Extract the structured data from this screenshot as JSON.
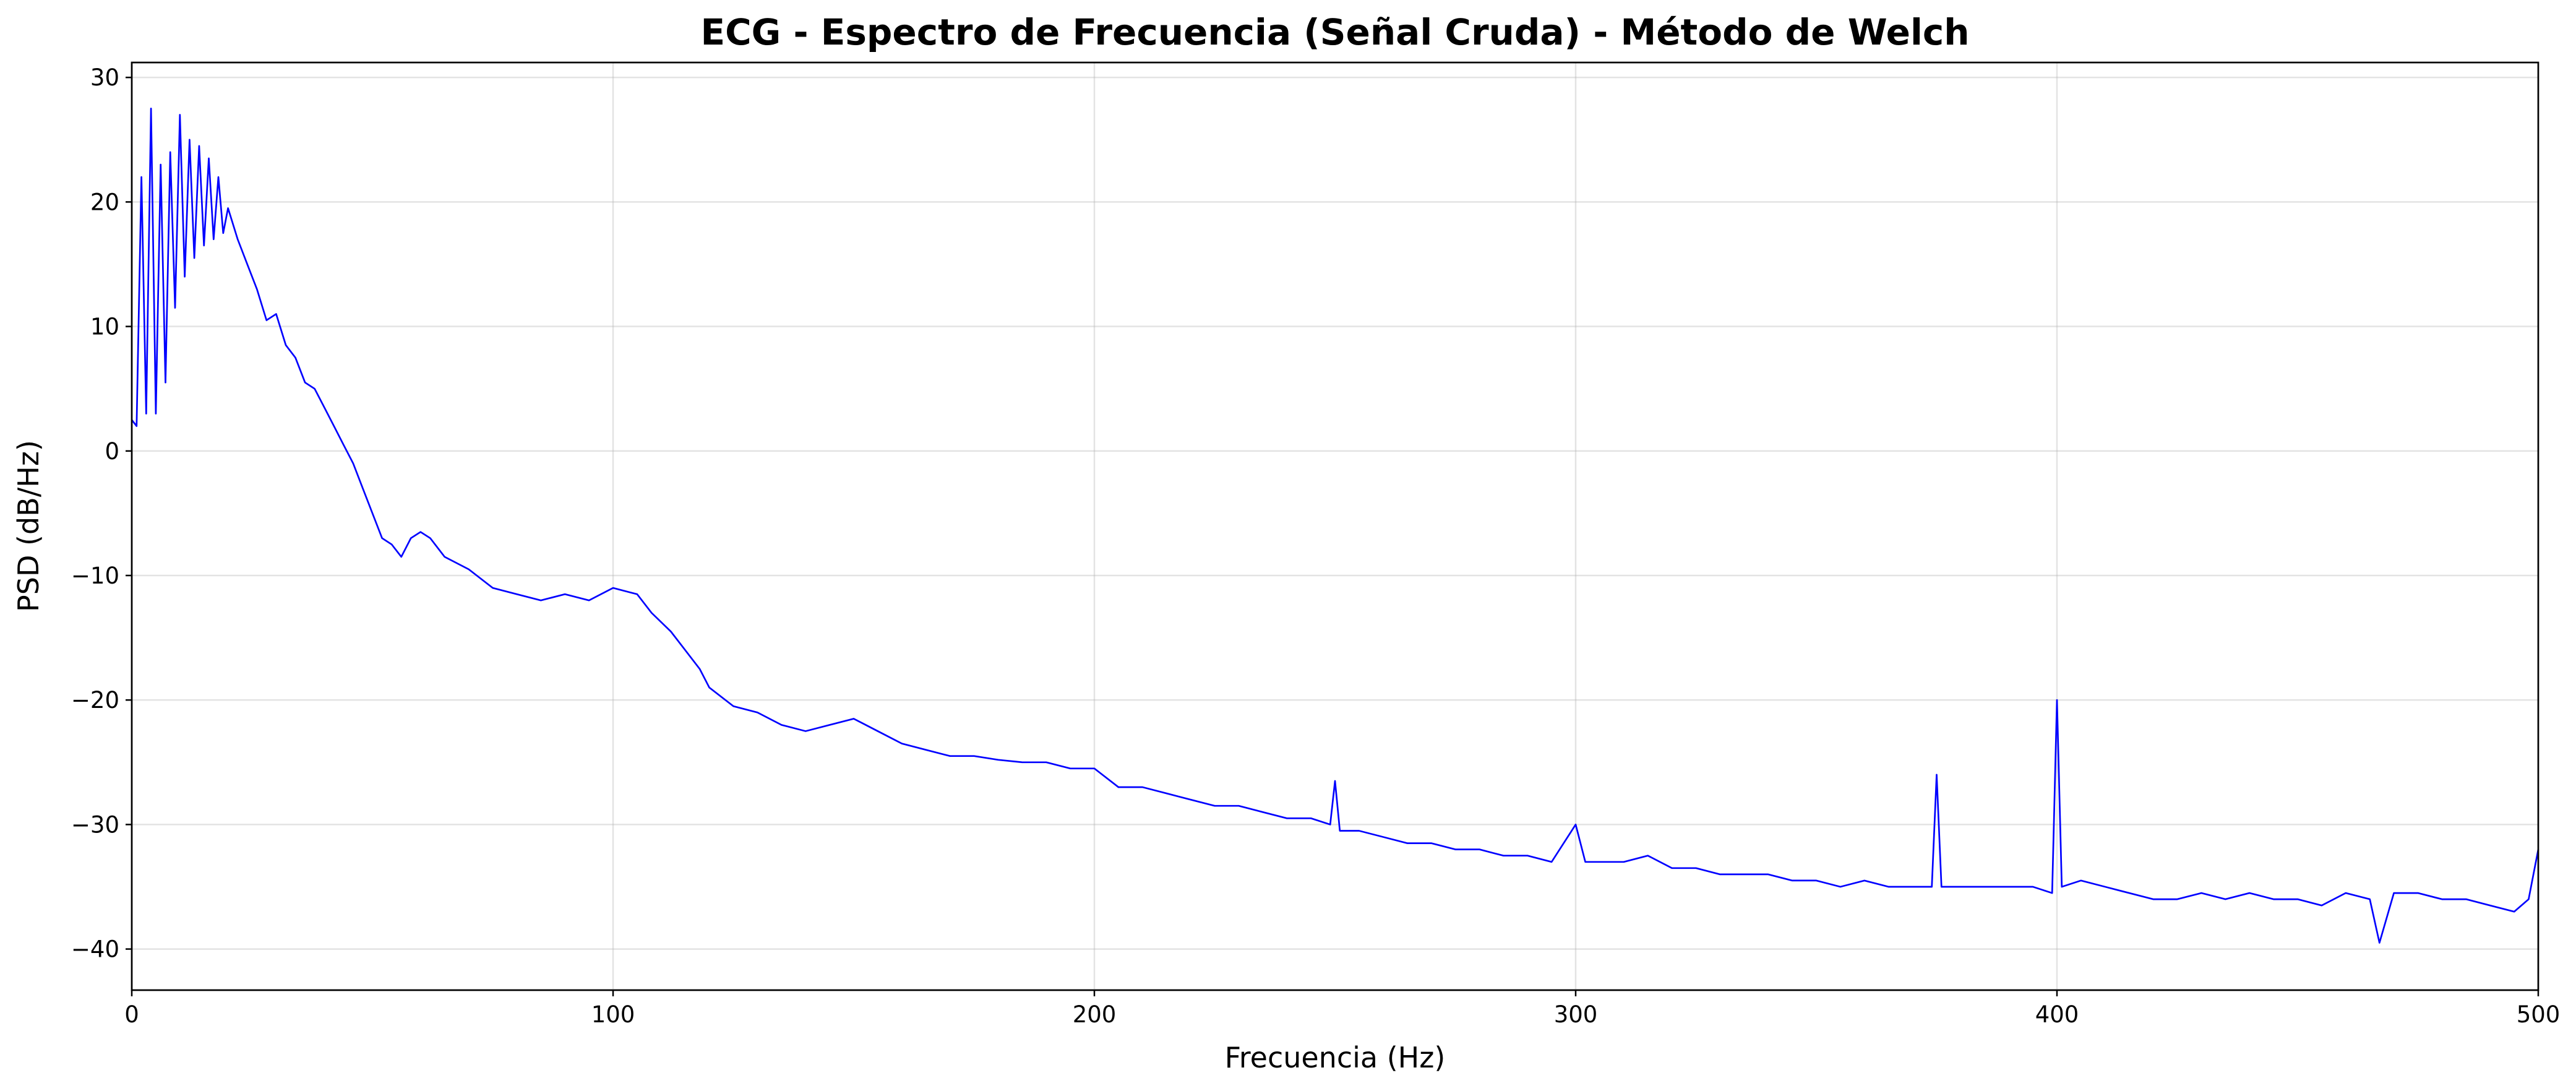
{
  "chart_data": {
    "type": "line",
    "title": "ECG - Espectro de Frecuencia (Señal Cruda) - Método de Welch",
    "x_label": "Frecuencia (Hz)",
    "y_label": "PSD (dB/Hz)",
    "x": [
      0,
      1,
      2,
      3,
      4,
      5,
      6,
      7,
      8,
      9,
      10,
      11,
      12,
      13,
      14,
      15,
      16,
      17,
      18,
      19,
      20,
      22,
      24,
      26,
      28,
      30,
      32,
      34,
      36,
      38,
      40,
      42,
      44,
      46,
      48,
      50,
      52,
      54,
      56,
      58,
      60,
      62,
      65,
      70,
      75,
      80,
      85,
      90,
      95,
      100,
      105,
      108,
      112,
      115,
      118,
      120,
      125,
      130,
      135,
      140,
      145,
      150,
      155,
      160,
      165,
      170,
      175,
      180,
      185,
      190,
      195,
      200,
      205,
      210,
      215,
      220,
      225,
      230,
      235,
      240,
      245,
      249,
      250,
      251,
      255,
      260,
      265,
      270,
      275,
      280,
      285,
      290,
      295,
      300,
      302,
      305,
      310,
      315,
      320,
      325,
      330,
      335,
      340,
      345,
      350,
      355,
      360,
      365,
      370,
      374,
      375,
      376,
      380,
      385,
      390,
      395,
      399,
      400,
      401,
      405,
      410,
      415,
      420,
      425,
      430,
      435,
      440,
      445,
      450,
      455,
      460,
      465,
      467,
      470,
      475,
      480,
      485,
      490,
      495,
      498,
      500
    ],
    "series": [
      {
        "name": "PSD",
        "color": "#0000ff",
        "values": [
          2.5,
          2,
          22,
          3,
          27.5,
          3,
          23,
          5.5,
          24,
          11.5,
          27,
          14,
          25,
          15.5,
          24.5,
          16.5,
          23.5,
          17,
          22,
          17.5,
          19.5,
          17,
          15,
          13,
          10.5,
          11,
          8.5,
          7.5,
          5.5,
          5,
          3.5,
          2,
          0.5,
          -1,
          -3,
          -5,
          -7,
          -7.5,
          -8.5,
          -7,
          -6.5,
          -7,
          -8.5,
          -9.5,
          -11,
          -11.5,
          -12,
          -11.5,
          -12,
          -11,
          -11.5,
          -13,
          -14.5,
          -16,
          -17.5,
          -19,
          -20.5,
          -21,
          -22,
          -22.5,
          -22,
          -21.5,
          -22.5,
          -23.5,
          -24,
          -24.5,
          -24.5,
          -24.8,
          -25,
          -25,
          -25.5,
          -25.5,
          -27,
          -27,
          -27.5,
          -28,
          -28.5,
          -28.5,
          -29,
          -29.5,
          -29.5,
          -30,
          -26.5,
          -30.5,
          -30.5,
          -31,
          -31.5,
          -31.5,
          -32,
          -32,
          -32.5,
          -32.5,
          -33,
          -30,
          -33,
          -33,
          -33,
          -32.5,
          -33.5,
          -33.5,
          -34,
          -34,
          -34,
          -34.5,
          -34.5,
          -35,
          -34.5,
          -35,
          -35,
          -35,
          -26,
          -35,
          -35,
          -35,
          -35,
          -35,
          -35.5,
          -20,
          -35,
          -34.5,
          -35,
          -35.5,
          -36,
          -36,
          -35.5,
          -36,
          -35.5,
          -36,
          -36,
          -36.5,
          -35.5,
          -36,
          -39.5,
          -35.5,
          -35.5,
          -36,
          -36,
          -36.5,
          -37,
          -36,
          -32
        ]
      }
    ],
    "xlim": [
      0,
      500
    ],
    "xticks": [
      0,
      100,
      200,
      300,
      400,
      500
    ],
    "ylim": [
      -43.3,
      31.2
    ],
    "yticks": [
      {
        "value": -40,
        "label": "−40"
      },
      {
        "value": -30,
        "label": "−30"
      },
      {
        "value": -20,
        "label": "−20"
      },
      {
        "value": -10,
        "label": "−10"
      },
      0,
      10,
      20,
      30
    ],
    "grid": true
  }
}
